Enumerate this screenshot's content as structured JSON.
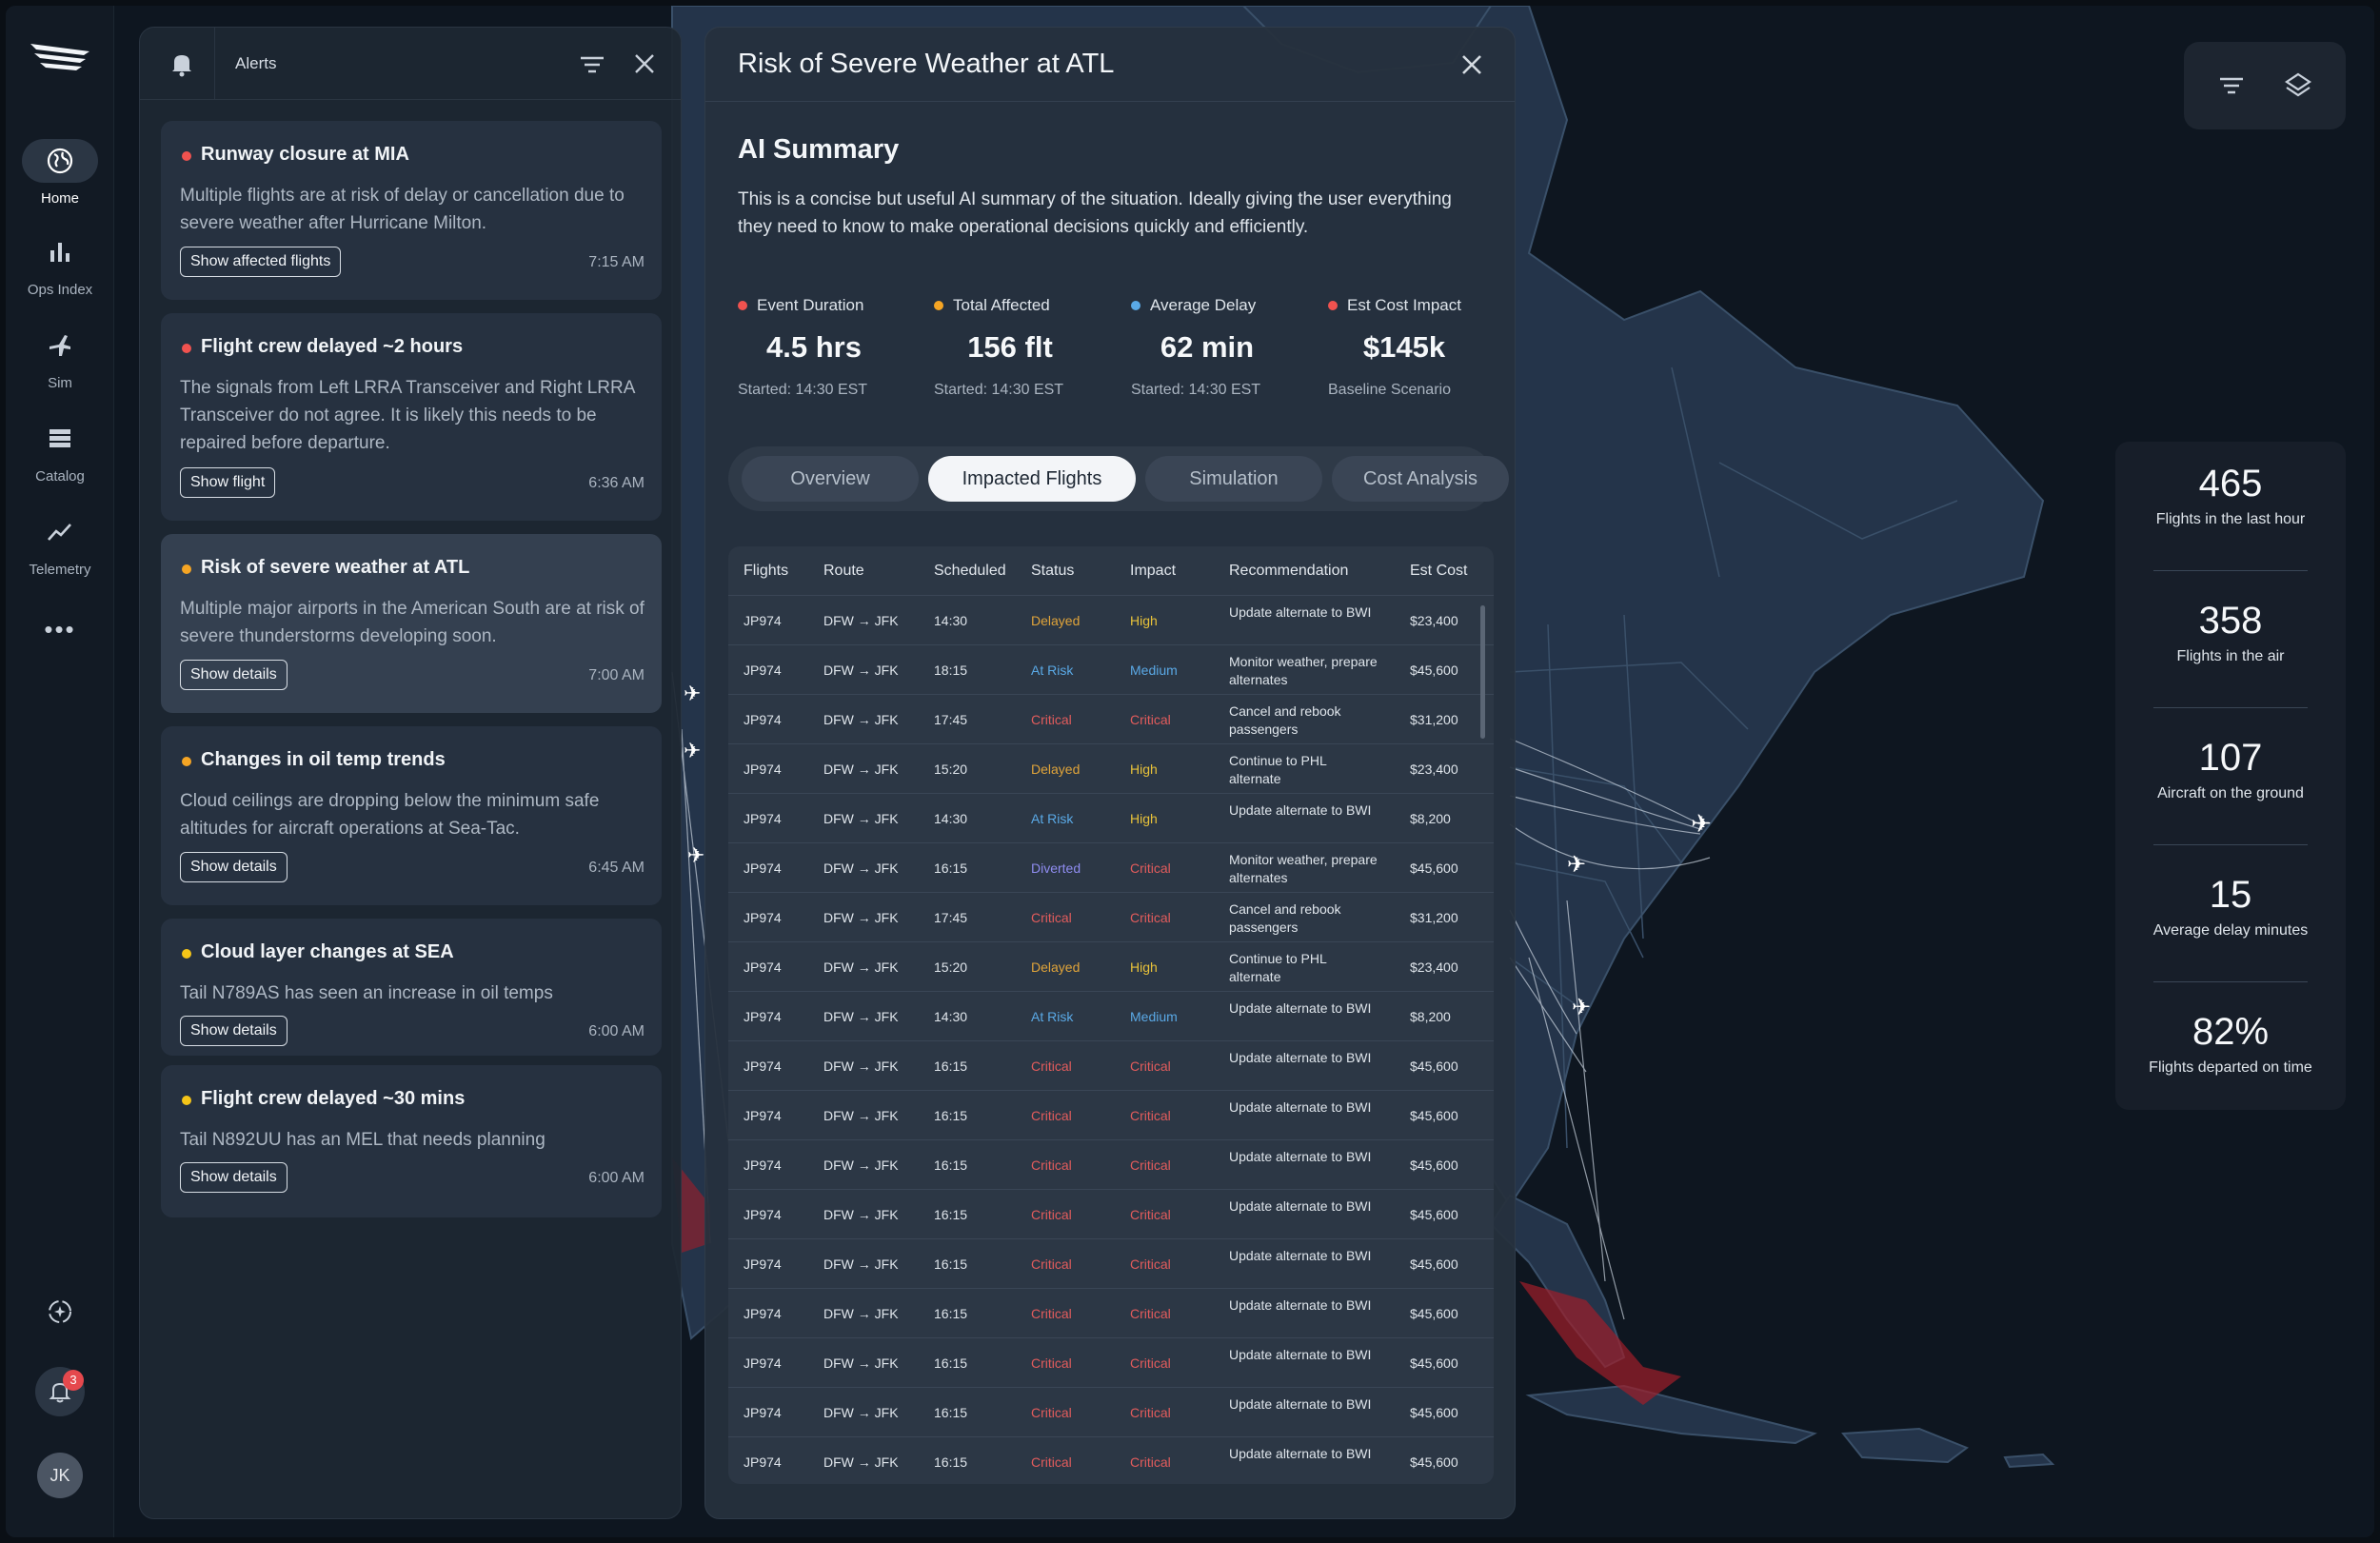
{
  "nav": {
    "items": [
      {
        "label": "Home",
        "icon": "globe-icon"
      },
      {
        "label": "Ops Index",
        "icon": "bar-chart-icon"
      },
      {
        "label": "Sim",
        "icon": "airplane-icon"
      },
      {
        "label": "Catalog",
        "icon": "stack-icon"
      },
      {
        "label": "Telemetry",
        "icon": "trend-line-icon"
      }
    ],
    "more_icon": "more-dots-icon",
    "notification_count": "3",
    "avatar_initials": "JK"
  },
  "alerts": {
    "title": "Alerts",
    "cards": [
      {
        "title": "Runway closure at MIA",
        "desc": "Multiple flights are at risk of delay or cancellation due to severe weather after Hurricane Milton.",
        "button": "Show affected flights",
        "time": "7:15 AM",
        "color": "#f0524f"
      },
      {
        "title": "Flight crew delayed ~2 hours",
        "desc": "The signals from Left LRRA Transceiver and Right LRRA Transceiver do not agree. It is likely this needs to be repaired before departure.",
        "button": "Show flight",
        "time": "6:36 AM",
        "color": "#f0524f"
      },
      {
        "title": "Risk of severe weather at ATL",
        "desc": "Multiple major airports in the American South are at risk of severe thunderstorms developing soon.",
        "button": "Show details",
        "time": "7:00 AM",
        "color": "#f5a524"
      },
      {
        "title": "Changes in oil temp trends",
        "desc": "Cloud ceilings are dropping below the minimum safe altitudes for aircraft operations at Sea-Tac.",
        "button": "Show details",
        "time": "6:45 AM",
        "color": "#f5a524"
      },
      {
        "title": "Cloud layer changes at SEA",
        "desc": "Tail N789AS has seen an increase in oil temps",
        "button": "Show details",
        "time": "6:00 AM",
        "color": "#f5c518"
      },
      {
        "title": "Flight crew delayed ~30 mins",
        "desc": "Tail N892UU has an MEL that needs planning",
        "button": "Show details",
        "time": "6:00 AM",
        "color": "#f5c518"
      }
    ]
  },
  "detail": {
    "title": "Risk of Severe Weather at ATL",
    "ai_title": "AI Summary",
    "ai_text": "This is a concise but useful AI summary of the situation. Ideally giving the user everything they need to know to make operational decisions quickly and efficiently.",
    "metrics": [
      {
        "label": "Event Duration",
        "value": "4.5 hrs",
        "sub": "Started: 14:30 EST",
        "color": "#f0524f"
      },
      {
        "label": "Total Affected",
        "value": "156 flt",
        "sub": "Started: 14:30 EST",
        "color": "#f5a524"
      },
      {
        "label": "Average Delay",
        "value": "62 min",
        "sub": "Started: 14:30 EST",
        "color": "#5aa9e6"
      },
      {
        "label": "Est Cost Impact",
        "value": "$145k",
        "sub": "Baseline Scenario",
        "color": "#f0524f"
      }
    ],
    "tabs": [
      "Overview",
      "Impacted Flights",
      "Simulation",
      "Cost Analysis"
    ],
    "active_tab": "Impacted Flights",
    "columns": [
      "Flights",
      "Route",
      "Scheduled",
      "Status",
      "Impact",
      "Recommendation",
      "Est Cost"
    ],
    "rows": [
      {
        "flight": "JP974",
        "route": "DFW → JFK",
        "time": "14:30",
        "status": "Delayed",
        "impact": "High",
        "rec": "Update alternate to BWI",
        "cost": "$23,400"
      },
      {
        "flight": "JP974",
        "route": "DFW → JFK",
        "time": "18:15",
        "status": "At Risk",
        "impact": "Medium",
        "rec": "Monitor weather, prepare alternates",
        "cost": "$45,600"
      },
      {
        "flight": "JP974",
        "route": "DFW → JFK",
        "time": "17:45",
        "status": "Critical",
        "impact": "Critical",
        "rec": "Cancel and rebook passengers",
        "cost": "$31,200"
      },
      {
        "flight": "JP974",
        "route": "DFW → JFK",
        "time": "15:20",
        "status": "Delayed",
        "impact": "High",
        "rec": "Continue to PHL alternate",
        "cost": "$23,400"
      },
      {
        "flight": "JP974",
        "route": "DFW → JFK",
        "time": "14:30",
        "status": "At Risk",
        "impact": "High",
        "rec": "Update alternate to BWI",
        "cost": "$8,200"
      },
      {
        "flight": "JP974",
        "route": "DFW → JFK",
        "time": "16:15",
        "status": "Diverted",
        "impact": "Critical",
        "rec": "Monitor weather, prepare alternates",
        "cost": "$45,600"
      },
      {
        "flight": "JP974",
        "route": "DFW → JFK",
        "time": "17:45",
        "status": "Critical",
        "impact": "Critical",
        "rec": "Cancel and rebook passengers",
        "cost": "$31,200"
      },
      {
        "flight": "JP974",
        "route": "DFW → JFK",
        "time": "15:20",
        "status": "Delayed",
        "impact": "High",
        "rec": "Continue to PHL alternate",
        "cost": "$23,400"
      },
      {
        "flight": "JP974",
        "route": "DFW → JFK",
        "time": "14:30",
        "status": "At Risk",
        "impact": "Medium",
        "rec": "Update alternate to BWI",
        "cost": "$8,200"
      },
      {
        "flight": "JP974",
        "route": "DFW → JFK",
        "time": "16:15",
        "status": "Critical",
        "impact": "Critical",
        "rec": "Update alternate to BWI",
        "cost": "$45,600"
      },
      {
        "flight": "JP974",
        "route": "DFW → JFK",
        "time": "16:15",
        "status": "Critical",
        "impact": "Critical",
        "rec": "Update alternate to BWI",
        "cost": "$45,600"
      },
      {
        "flight": "JP974",
        "route": "DFW → JFK",
        "time": "16:15",
        "status": "Critical",
        "impact": "Critical",
        "rec": "Update alternate to BWI",
        "cost": "$45,600"
      },
      {
        "flight": "JP974",
        "route": "DFW → JFK",
        "time": "16:15",
        "status": "Critical",
        "impact": "Critical",
        "rec": "Update alternate to BWI",
        "cost": "$45,600"
      },
      {
        "flight": "JP974",
        "route": "DFW → JFK",
        "time": "16:15",
        "status": "Critical",
        "impact": "Critical",
        "rec": "Update alternate to BWI",
        "cost": "$45,600"
      },
      {
        "flight": "JP974",
        "route": "DFW → JFK",
        "time": "16:15",
        "status": "Critical",
        "impact": "Critical",
        "rec": "Update alternate to BWI",
        "cost": "$45,600"
      },
      {
        "flight": "JP974",
        "route": "DFW → JFK",
        "time": "16:15",
        "status": "Critical",
        "impact": "Critical",
        "rec": "Update alternate to BWI",
        "cost": "$45,600"
      },
      {
        "flight": "JP974",
        "route": "DFW → JFK",
        "time": "16:15",
        "status": "Critical",
        "impact": "Critical",
        "rec": "Update alternate to BWI",
        "cost": "$45,600"
      },
      {
        "flight": "JP974",
        "route": "DFW → JFK",
        "time": "16:15",
        "status": "Critical",
        "impact": "Critical",
        "rec": "Update alternate to BWI",
        "cost": "$45,600"
      }
    ],
    "status_colors": {
      "Delayed": "#e0a43a",
      "At Risk": "#5aa9e6",
      "Critical": "#e25c5c",
      "Diverted": "#8f8cf0",
      "High": "#e8c23a",
      "Medium": "#5aa9e6"
    }
  },
  "stats": [
    {
      "value": "465",
      "label": "Flights in the last hour"
    },
    {
      "value": "358",
      "label": "Flights in the air"
    },
    {
      "value": "107",
      "label": "Aircraft on the ground"
    },
    {
      "value": "15",
      "label": "Average delay minutes"
    },
    {
      "value": "82%",
      "label": "Flights departed on time"
    }
  ],
  "map_tools": [
    "filter-icon",
    "layers-icon"
  ]
}
